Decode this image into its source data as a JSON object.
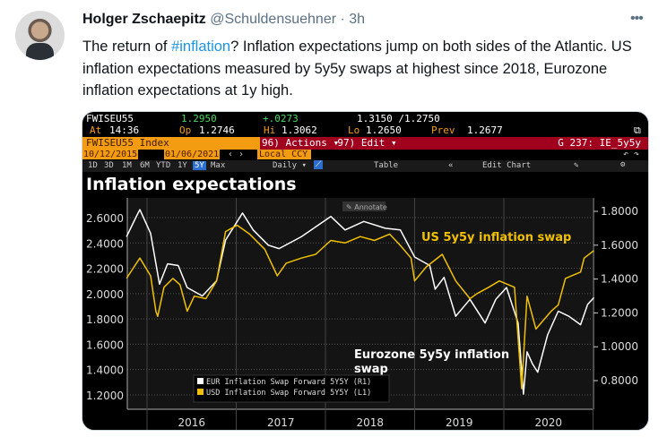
{
  "tweet": {
    "author_name": "Holger Zschaepitz",
    "handle": "@Schuldensuehner",
    "separator": "·",
    "time": "3h",
    "more_icon": "more-dots-icon",
    "text_before": "The return of ",
    "hashtag": "#inflation",
    "text_after": "? Inflation expectations jump on both sides of the Atlantic. US inflation expectations measured by 5y5y swaps at highest since 2018, Eurozone inflation expectations at 1y high."
  },
  "terminal": {
    "ticker": "FWISEU55",
    "last": "1.2950",
    "change": "+.0273",
    "bid_ask": "1.3150 /1.2750",
    "at_label": "At",
    "at": "14:36",
    "op_label": "Op",
    "op": "1.2746",
    "hi_label": "Hi",
    "hi": "1.3062",
    "lo_label": "Lo",
    "lo": "1.2650",
    "prev_label": "Prev",
    "prev": "1.2677",
    "security": "FWISEU55 Index",
    "actions": "96) Actions ▾",
    "edit": "97) Edit ▾",
    "chart_id": "G 237: IE_5y5y",
    "start_date": "10/12/2015",
    "end_date": "01/06/2021",
    "currency": "Local CCY",
    "periods": [
      "1D",
      "3D",
      "1M",
      "6M",
      "YTD",
      "1Y",
      "5Y",
      "Max"
    ],
    "active_period": "5Y",
    "frequency": "Daily ▾",
    "table": "Table",
    "edit_chart": "Edit Chart",
    "annotate": "Annotate"
  },
  "chart_data": {
    "type": "line",
    "title": "Inflation expectations",
    "x_tick_labels": [
      "2016",
      "2017",
      "2018",
      "2019",
      "2020"
    ],
    "xlim": [
      2015.78,
      2021.02
    ],
    "left_axis": {
      "ticks": [
        "2.6000",
        "2.4000",
        "2.2000",
        "2.0000",
        "1.8000",
        "1.6000",
        "1.4000",
        "1.2000"
      ],
      "ylim": [
        1.15,
        2.68
      ]
    },
    "right_axis": {
      "ticks": [
        "1.8000",
        "1.6000",
        "1.4000",
        "1.2000",
        "1.0000",
        "0.8000"
      ],
      "ylim": [
        0.7,
        1.83
      ]
    },
    "grid": true,
    "legend_position": "bottom-left",
    "annotations": [
      "US 5y5y inflation swap",
      "Eurozone 5y5y inflation swap"
    ],
    "series": [
      {
        "name": "EUR Inflation Swap Forward 5Y5Y  (R1)",
        "axis": "right",
        "color": "#ffffff",
        "x": [
          2015.77,
          2015.88,
          2015.92,
          2016.04,
          2016.14,
          2016.23,
          2016.35,
          2016.45,
          2016.62,
          2016.78,
          2016.88,
          2017.07,
          2017.19,
          2017.36,
          2017.48,
          2017.73,
          2018.06,
          2018.22,
          2018.43,
          2018.67,
          2018.84,
          2019.0,
          2019.17,
          2019.23,
          2019.33,
          2019.46,
          2019.62,
          2019.79,
          2019.91,
          2020.03,
          2020.16,
          2020.22,
          2020.26,
          2020.32,
          2020.38,
          2020.49,
          2020.61,
          2020.73,
          2020.86,
          2020.94,
          2021.01
        ],
        "y": [
          1.65,
          1.77,
          1.81,
          1.67,
          1.37,
          1.49,
          1.48,
          1.35,
          1.3,
          1.39,
          1.63,
          1.79,
          1.69,
          1.6,
          1.58,
          1.65,
          1.77,
          1.69,
          1.74,
          1.7,
          1.69,
          1.53,
          1.48,
          1.34,
          1.41,
          1.18,
          1.28,
          1.14,
          1.28,
          1.35,
          1.14,
          0.72,
          0.97,
          0.9,
          0.85,
          1.07,
          1.21,
          1.18,
          1.13,
          1.25,
          1.29
        ]
      },
      {
        "name": "USD Inflation Swap Forward 5Y5Y  (L1)",
        "axis": "left",
        "color": "#f0c000",
        "x": [
          2015.77,
          2015.92,
          2016.04,
          2016.1,
          2016.12,
          2016.19,
          2016.29,
          2016.37,
          2016.45,
          2016.53,
          2016.66,
          2016.78,
          2016.88,
          2017.01,
          2017.15,
          2017.32,
          2017.46,
          2017.56,
          2017.73,
          2017.89,
          2018.06,
          2018.22,
          2018.39,
          2018.55,
          2018.72,
          2018.84,
          2018.96,
          2019.0,
          2019.13,
          2019.31,
          2019.46,
          2019.62,
          2019.7,
          2019.83,
          2019.95,
          2020.12,
          2020.2,
          2020.26,
          2020.36,
          2020.53,
          2020.61,
          2020.69,
          2020.86,
          2020.9,
          2021.01
        ],
        "y": [
          2.12,
          2.28,
          2.14,
          1.86,
          1.82,
          2.05,
          2.12,
          2.07,
          1.86,
          1.98,
          1.96,
          2.1,
          2.49,
          2.54,
          2.47,
          2.35,
          2.14,
          2.24,
          2.28,
          2.31,
          2.42,
          2.4,
          2.45,
          2.42,
          2.47,
          2.38,
          2.28,
          2.1,
          2.21,
          2.31,
          2.1,
          1.96,
          2.0,
          2.05,
          2.1,
          2.05,
          1.25,
          1.98,
          1.72,
          1.86,
          1.91,
          2.12,
          2.17,
          2.28,
          2.34
        ]
      }
    ]
  }
}
